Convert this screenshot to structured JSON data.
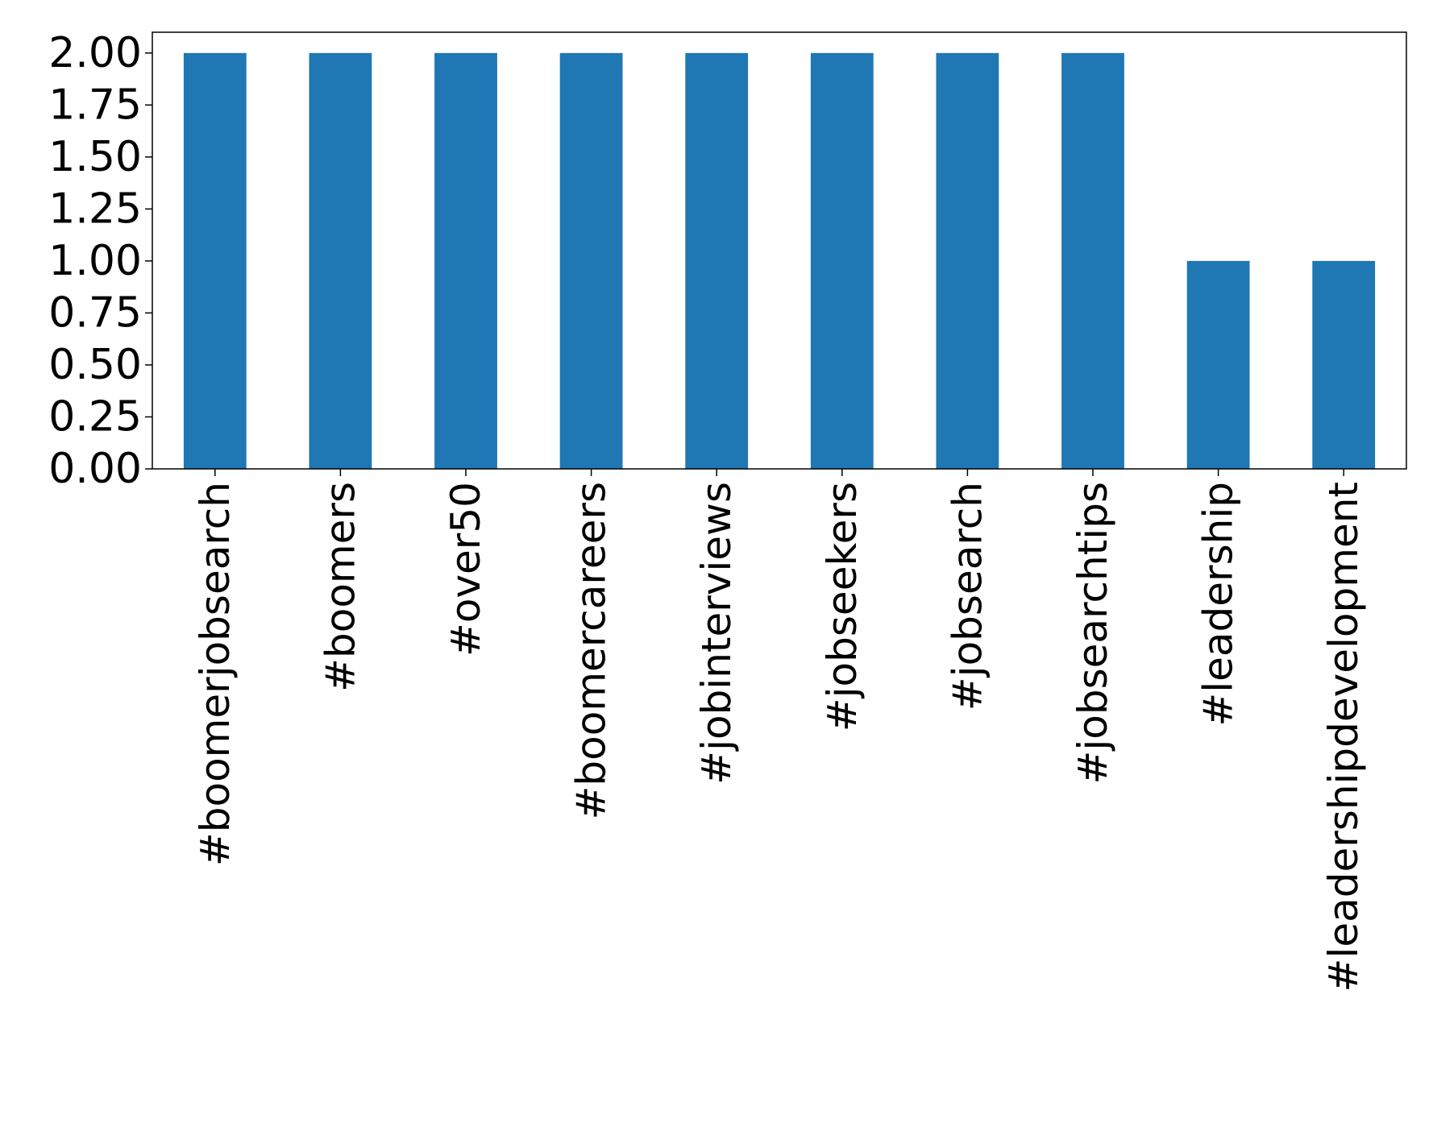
{
  "chart_data": {
    "type": "bar",
    "categories": [
      "#boomerjobsearch",
      "#boomers",
      "#over50",
      "#boomercareers",
      "#jobinterviews",
      "#jobseekers",
      "#jobsearch",
      "#jobsearchtips",
      "#leadership",
      "#leadershipdevelopment"
    ],
    "values": [
      2,
      2,
      2,
      2,
      2,
      2,
      2,
      2,
      1,
      1
    ],
    "y_ticks": [
      "0.00",
      "0.25",
      "0.50",
      "0.75",
      "1.00",
      "1.25",
      "1.50",
      "1.75",
      "2.00"
    ],
    "ylim": [
      0,
      2.1
    ],
    "bar_color": "#1f77b4",
    "grid": false,
    "title": "",
    "xlabel": "",
    "ylabel": ""
  }
}
